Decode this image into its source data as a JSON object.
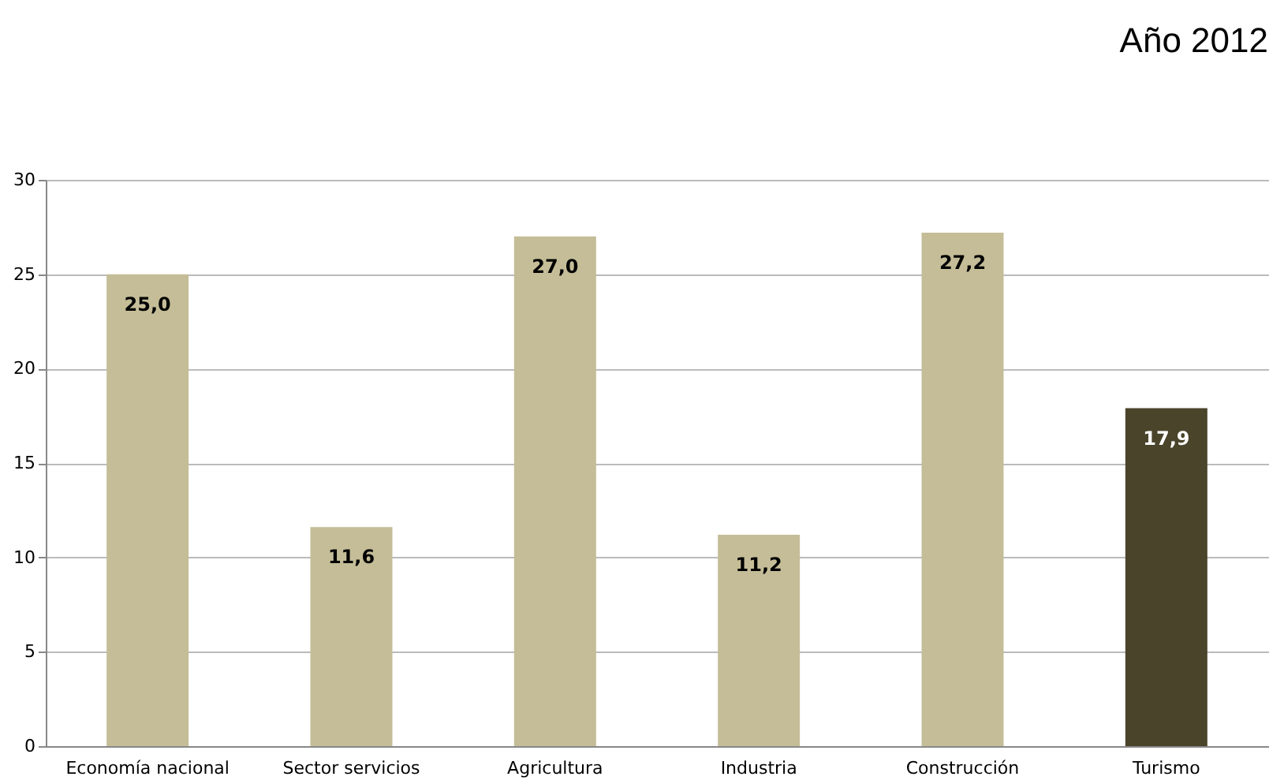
{
  "chart_data": {
    "type": "bar",
    "title": "Año 2012",
    "categories": [
      "Economía nacional",
      "Sector servicios",
      "Agricultura",
      "Industria",
      "Construcción",
      "Turismo"
    ],
    "values": [
      25.0,
      11.6,
      27.0,
      11.2,
      27.2,
      17.9
    ],
    "value_labels": [
      "25,0",
      "11,6",
      "27,0",
      "11,2",
      "27,2",
      "17,9"
    ],
    "colors": [
      "#c4bd97",
      "#c4bd97",
      "#c4bd97",
      "#c4bd97",
      "#c4bd97",
      "#4a442a"
    ],
    "ylim": [
      0,
      30
    ],
    "yticks": [
      0,
      5,
      10,
      15,
      20,
      25,
      30
    ],
    "grid": "y"
  }
}
